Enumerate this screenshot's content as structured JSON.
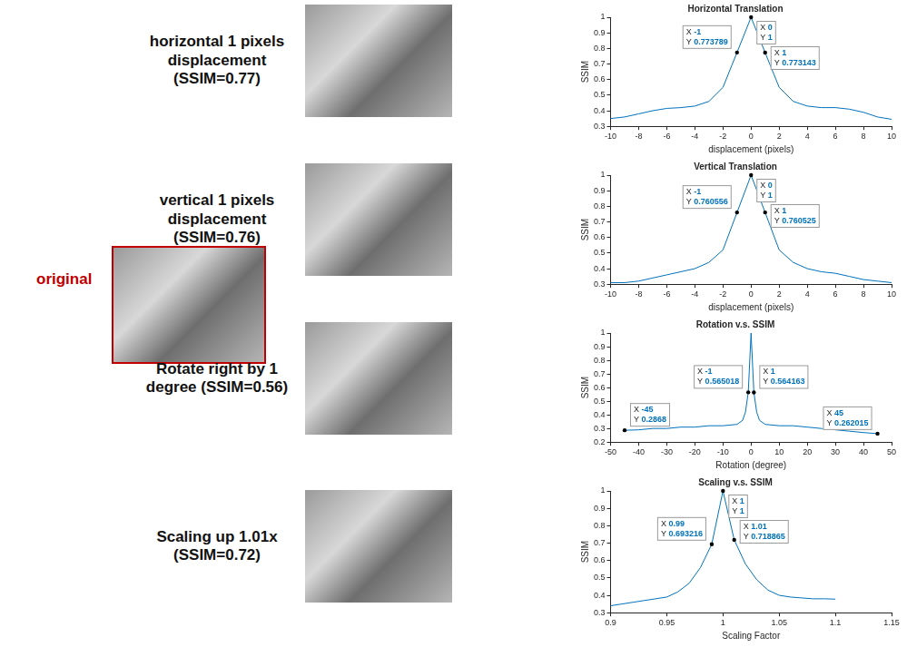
{
  "original_label": "original",
  "chart_data": [
    {
      "type": "line",
      "title": "Horizontal Translation",
      "caption": "horizontal 1 pixels displacement (SSIM=0.77)",
      "x_label": "displacement (pixels)",
      "y_label": "SSIM",
      "color": "#0072bd",
      "grid": false,
      "x": [
        -10,
        -9,
        -8,
        -7,
        -6,
        -5,
        -4,
        -3,
        -2,
        -1,
        0,
        1,
        2,
        3,
        4,
        5,
        6,
        7,
        8,
        9,
        10
      ],
      "values": [
        0.35,
        0.36,
        0.38,
        0.4,
        0.415,
        0.42,
        0.43,
        0.46,
        0.55,
        0.773789,
        1,
        0.773143,
        0.55,
        0.46,
        0.43,
        0.42,
        0.42,
        0.41,
        0.39,
        0.36,
        0.345
      ],
      "xlim": [
        -10,
        10
      ],
      "xticks": [
        -10,
        -8,
        -6,
        -4,
        -2,
        0,
        2,
        4,
        6,
        8,
        10
      ],
      "ylim": [
        0.3,
        1
      ],
      "yticks": [
        0.3,
        0.4,
        0.5,
        0.6,
        0.7,
        0.8,
        0.9,
        1
      ],
      "annotations": [
        {
          "x": 0,
          "y": 1,
          "label": [
            "X 0",
            "Y 1"
          ]
        },
        {
          "x": -1,
          "y": 0.773789,
          "label": [
            "X -1",
            "Y 0.773789"
          ]
        },
        {
          "x": 1,
          "y": 0.773143,
          "label": [
            "X 1",
            "Y 0.773143"
          ]
        }
      ]
    },
    {
      "type": "line",
      "title": "Vertical Translation",
      "caption": "vertical 1 pixels displacement (SSIM=0.76)",
      "x_label": "displacement (pixels)",
      "y_label": "SSIM",
      "color": "#0072bd",
      "grid": false,
      "x": [
        -10,
        -9,
        -8,
        -7,
        -6,
        -5,
        -4,
        -3,
        -2,
        -1,
        0,
        1,
        2,
        3,
        4,
        5,
        6,
        7,
        8,
        9,
        10
      ],
      "values": [
        0.31,
        0.31,
        0.32,
        0.34,
        0.36,
        0.38,
        0.4,
        0.44,
        0.52,
        0.760556,
        1,
        0.760525,
        0.52,
        0.44,
        0.4,
        0.38,
        0.37,
        0.35,
        0.33,
        0.32,
        0.31
      ],
      "xlim": [
        -10,
        10
      ],
      "xticks": [
        -10,
        -8,
        -6,
        -4,
        -2,
        0,
        2,
        4,
        6,
        8,
        10
      ],
      "ylim": [
        0.3,
        1
      ],
      "yticks": [
        0.3,
        0.4,
        0.5,
        0.6,
        0.7,
        0.8,
        0.9,
        1
      ],
      "annotations": [
        {
          "x": 0,
          "y": 1,
          "label": [
            "X 0",
            "Y 1"
          ]
        },
        {
          "x": -1,
          "y": 0.760556,
          "label": [
            "X -1",
            "Y 0.760556"
          ]
        },
        {
          "x": 1,
          "y": 0.760525,
          "label": [
            "X 1",
            "Y 0.760525"
          ]
        }
      ]
    },
    {
      "type": "line",
      "title": "Rotation v.s. SSIM",
      "caption": "Rotate right by 1 degree (SSIM=0.56)",
      "x_label": "Rotation (degree)",
      "y_label": "SSIM",
      "color": "#0072bd",
      "grid": false,
      "x": [
        -45,
        -40,
        -35,
        -30,
        -25,
        -20,
        -15,
        -10,
        -5,
        -3,
        -2,
        -1,
        0,
        1,
        2,
        3,
        5,
        10,
        15,
        20,
        25,
        30,
        35,
        40,
        45
      ],
      "values": [
        0.2868,
        0.29,
        0.3,
        0.3,
        0.31,
        0.31,
        0.32,
        0.32,
        0.33,
        0.36,
        0.42,
        0.565018,
        1,
        0.564163,
        0.42,
        0.36,
        0.33,
        0.32,
        0.32,
        0.31,
        0.3,
        0.29,
        0.28,
        0.27,
        0.262015
      ],
      "xlim": [
        -50,
        50
      ],
      "xticks": [
        -50,
        -40,
        -30,
        -20,
        -10,
        0,
        10,
        20,
        30,
        40,
        50
      ],
      "ylim": [
        0.2,
        1
      ],
      "yticks": [
        0.2,
        0.3,
        0.4,
        0.5,
        0.6,
        0.7,
        0.8,
        0.9,
        1
      ],
      "annotations": [
        {
          "x": -1,
          "y": 0.565018,
          "label": [
            "X -1",
            "Y 0.565018"
          ]
        },
        {
          "x": 1,
          "y": 0.564163,
          "label": [
            "X 1",
            "Y 0.564163"
          ]
        },
        {
          "x": -45,
          "y": 0.2868,
          "label": [
            "X -45",
            "Y 0.2868"
          ]
        },
        {
          "x": 45,
          "y": 0.262015,
          "label": [
            "X 45",
            "Y 0.262015"
          ]
        }
      ]
    },
    {
      "type": "line",
      "title": "Scaling v.s. SSIM",
      "caption": "Scaling up 1.01x (SSIM=0.72)",
      "x_label": "Scaling Factor",
      "y_label": "SSIM",
      "color": "#0072bd",
      "grid": false,
      "x": [
        0.9,
        0.91,
        0.92,
        0.93,
        0.94,
        0.95,
        0.96,
        0.97,
        0.98,
        0.99,
        1,
        1.01,
        1.02,
        1.03,
        1.04,
        1.05,
        1.06,
        1.07,
        1.08,
        1.09,
        1.1
      ],
      "values": [
        0.34,
        0.35,
        0.36,
        0.37,
        0.38,
        0.39,
        0.42,
        0.47,
        0.56,
        0.693216,
        1,
        0.718865,
        0.58,
        0.49,
        0.43,
        0.4,
        0.39,
        0.385,
        0.38,
        0.38,
        0.378
      ],
      "xlim": [
        0.9,
        1.15
      ],
      "xticks": [
        0.9,
        0.95,
        1,
        1.05,
        1.1,
        1.15
      ],
      "ylim": [
        0.3,
        1
      ],
      "yticks": [
        0.3,
        0.4,
        0.5,
        0.6,
        0.7,
        0.8,
        0.9,
        1
      ],
      "annotations": [
        {
          "x": 1,
          "y": 1,
          "label": [
            "X 1",
            "Y 1"
          ]
        },
        {
          "x": 0.99,
          "y": 0.693216,
          "label": [
            "X 0.99",
            "Y 0.693216"
          ]
        },
        {
          "x": 1.01,
          "y": 0.718865,
          "label": [
            "X 1.01",
            "Y 0.718865"
          ]
        }
      ]
    }
  ]
}
